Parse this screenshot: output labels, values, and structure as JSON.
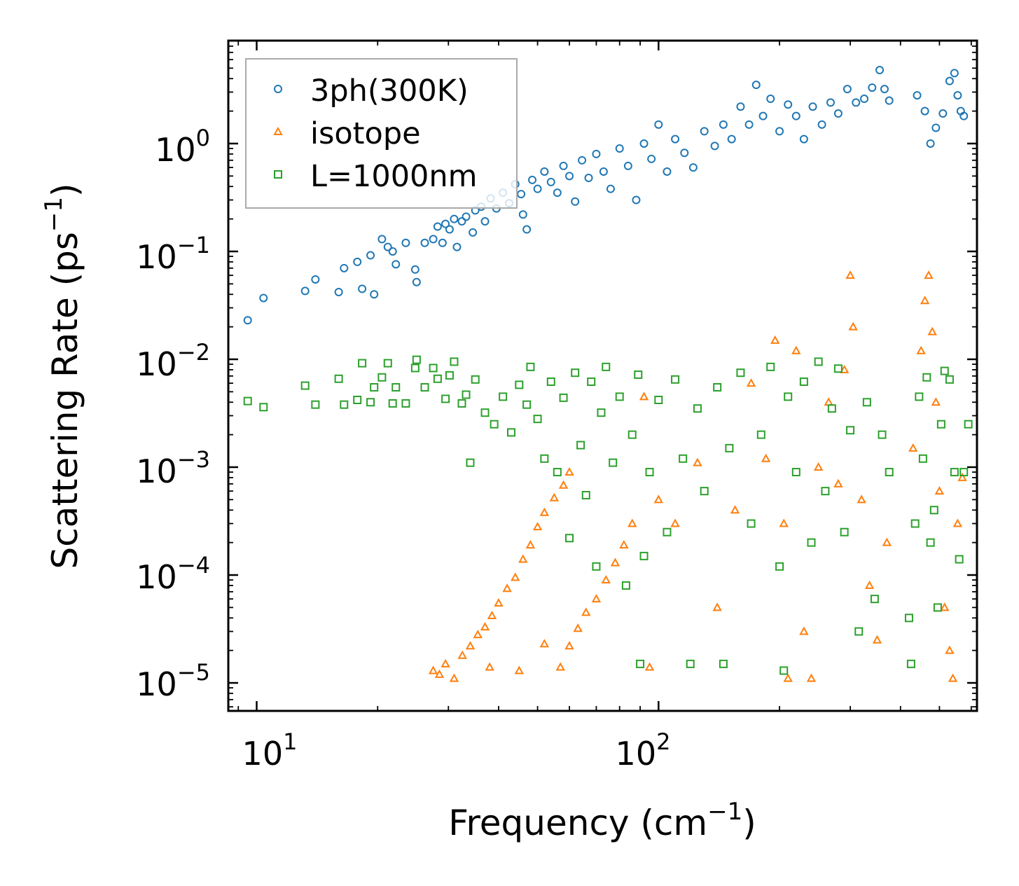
{
  "chart_data": {
    "type": "scatter",
    "xlabel": "Frequency (cm",
    "xlabel_sup": "−1",
    "xlabel_end": ")",
    "ylabel": "Scattering Rate (ps",
    "ylabel_sup": "−1",
    "ylabel_end": ")",
    "xscale": "log",
    "yscale": "log",
    "xlim": [
      8.5,
      620
    ],
    "ylim": [
      5.5e-06,
      9.0
    ],
    "x_ticks": [
      {
        "value": 10,
        "base": "10",
        "exp": "1"
      },
      {
        "value": 100,
        "base": "10",
        "exp": "2"
      }
    ],
    "y_ticks": [
      {
        "value": 1,
        "base": "10",
        "exp": "0"
      },
      {
        "value": 0.1,
        "base": "10",
        "exp": "−1"
      },
      {
        "value": 0.01,
        "base": "10",
        "exp": "−2"
      },
      {
        "value": 0.001,
        "base": "10",
        "exp": "−3"
      },
      {
        "value": 0.0001,
        "base": "10",
        "exp": "−4"
      },
      {
        "value": 1e-05,
        "base": "10",
        "exp": "−5"
      }
    ],
    "legend_position": "top-left",
    "series": [
      {
        "name": "3ph(300K)",
        "marker": "circle",
        "color": "#1f77b4",
        "points": [
          [
            9.5,
            0.023
          ],
          [
            10.4,
            0.037
          ],
          [
            13.2,
            0.043
          ],
          [
            14.0,
            0.055
          ],
          [
            16.0,
            0.042
          ],
          [
            16.5,
            0.07
          ],
          [
            17.8,
            0.08
          ],
          [
            18.3,
            0.045
          ],
          [
            19.2,
            0.092
          ],
          [
            19.6,
            0.04
          ],
          [
            20.5,
            0.13
          ],
          [
            21.2,
            0.11
          ],
          [
            21.8,
            0.1
          ],
          [
            22.2,
            0.076
          ],
          [
            23.5,
            0.12
          ],
          [
            24.8,
            0.068
          ],
          [
            25.0,
            0.052
          ],
          [
            26.2,
            0.12
          ],
          [
            27.5,
            0.13
          ],
          [
            28.2,
            0.17
          ],
          [
            29.0,
            0.12
          ],
          [
            29.5,
            0.18
          ],
          [
            30.2,
            0.16
          ],
          [
            31.0,
            0.2
          ],
          [
            31.5,
            0.11
          ],
          [
            32.4,
            0.19
          ],
          [
            33.2,
            0.21
          ],
          [
            34.5,
            0.15
          ],
          [
            35.0,
            0.24
          ],
          [
            36.2,
            0.26
          ],
          [
            37.0,
            0.19
          ],
          [
            38.2,
            0.31
          ],
          [
            39.5,
            0.25
          ],
          [
            41.0,
            0.35
          ],
          [
            42.5,
            0.28
          ],
          [
            44.0,
            0.42
          ],
          [
            45.5,
            0.34
          ],
          [
            46.0,
            0.22
          ],
          [
            47.0,
            0.16
          ],
          [
            48.5,
            0.46
          ],
          [
            50.0,
            0.38
          ],
          [
            52.0,
            0.55
          ],
          [
            54.0,
            0.44
          ],
          [
            56.0,
            0.35
          ],
          [
            58.0,
            0.62
          ],
          [
            60.0,
            0.5
          ],
          [
            62.0,
            0.29
          ],
          [
            64.5,
            0.7
          ],
          [
            67.0,
            0.48
          ],
          [
            70.0,
            0.8
          ],
          [
            73.0,
            0.55
          ],
          [
            76.0,
            0.38
          ],
          [
            80.0,
            0.9
          ],
          [
            84.0,
            0.62
          ],
          [
            88.0,
            0.3
          ],
          [
            92.0,
            1.0
          ],
          [
            96.0,
            0.72
          ],
          [
            100.0,
            1.5
          ],
          [
            105.0,
            0.55
          ],
          [
            110.0,
            1.1
          ],
          [
            116.0,
            0.82
          ],
          [
            122.0,
            0.6
          ],
          [
            130.0,
            1.3
          ],
          [
            138.0,
            0.95
          ],
          [
            145.0,
            1.5
          ],
          [
            152.0,
            1.1
          ],
          [
            160.0,
            2.2
          ],
          [
            168.0,
            1.5
          ],
          [
            175.0,
            3.5
          ],
          [
            182.0,
            1.8
          ],
          [
            190.0,
            2.6
          ],
          [
            200.0,
            1.3
          ],
          [
            210.0,
            2.3
          ],
          [
            220.0,
            1.8
          ],
          [
            230.0,
            1.1
          ],
          [
            242.0,
            2.2
          ],
          [
            255.0,
            1.5
          ],
          [
            268.0,
            2.4
          ],
          [
            280.0,
            1.9
          ],
          [
            295.0,
            3.2
          ],
          [
            310.0,
            2.4
          ],
          [
            325.0,
            2.6
          ],
          [
            340.0,
            3.3
          ],
          [
            355.0,
            4.8
          ],
          [
            365.0,
            3.2
          ],
          [
            375.0,
            2.5
          ],
          [
            440.0,
            2.8
          ],
          [
            460.0,
            2.0
          ],
          [
            475.0,
            1.0
          ],
          [
            490.0,
            1.4
          ],
          [
            510.0,
            1.9
          ],
          [
            530.0,
            3.8
          ],
          [
            545.0,
            4.5
          ],
          [
            555.0,
            2.8
          ],
          [
            565.0,
            2.0
          ],
          [
            575.0,
            1.8
          ]
        ]
      },
      {
        "name": "isotope",
        "marker": "triangle",
        "color": "#ff7f0e",
        "points": [
          [
            27.5,
            1.3e-05
          ],
          [
            28.5,
            1.2e-05
          ],
          [
            29.5,
            1.5e-05
          ],
          [
            31.0,
            1.1e-05
          ],
          [
            32.5,
            1.8e-05
          ],
          [
            34.0,
            2.2e-05
          ],
          [
            35.5,
            2.8e-05
          ],
          [
            37.0,
            3.3e-05
          ],
          [
            38.5,
            4.2e-05
          ],
          [
            40.0,
            5.5e-05
          ],
          [
            42.0,
            7.5e-05
          ],
          [
            44.0,
            9.5e-05
          ],
          [
            46.0,
            0.00014
          ],
          [
            48.0,
            0.00019
          ],
          [
            50.0,
            0.00028
          ],
          [
            52.0,
            0.00038
          ],
          [
            55.0,
            0.00052
          ],
          [
            58.0,
            0.00068
          ],
          [
            60.0,
            0.0009
          ],
          [
            38.0,
            1.4e-05
          ],
          [
            45.0,
            1.3e-05
          ],
          [
            52.0,
            2.3e-05
          ],
          [
            57.0,
            1.4e-05
          ],
          [
            60.0,
            2.2e-05
          ],
          [
            63.0,
            3.2e-05
          ],
          [
            66.0,
            4.5e-05
          ],
          [
            70.0,
            6e-05
          ],
          [
            74.0,
            9e-05
          ],
          [
            78.0,
            0.00013
          ],
          [
            82.0,
            0.00019
          ],
          [
            86.0,
            0.0003
          ],
          [
            92.0,
            0.0045
          ],
          [
            95.0,
            1.4e-05
          ],
          [
            100.0,
            0.0005
          ],
          [
            110.0,
            0.0003
          ],
          [
            125.0,
            0.0011
          ],
          [
            140.0,
            5e-05
          ],
          [
            155.0,
            0.0004
          ],
          [
            170.0,
            0.006
          ],
          [
            185.0,
            0.0012
          ],
          [
            195.0,
            0.015
          ],
          [
            205.0,
            0.0003
          ],
          [
            210.0,
            1.1e-05
          ],
          [
            220.0,
            0.012
          ],
          [
            230.0,
            3e-05
          ],
          [
            240.0,
            1.1e-05
          ],
          [
            250.0,
            0.001
          ],
          [
            265.0,
            0.004
          ],
          [
            280.0,
            0.0007
          ],
          [
            290.0,
            0.008
          ],
          [
            300.0,
            0.06
          ],
          [
            305.0,
            0.02
          ],
          [
            320.0,
            0.0005
          ],
          [
            335.0,
            8e-05
          ],
          [
            350.0,
            2.5e-05
          ],
          [
            370.0,
            0.0002
          ],
          [
            430.0,
            0.0015
          ],
          [
            450.0,
            0.012
          ],
          [
            460.0,
            0.035
          ],
          [
            470.0,
            0.06
          ],
          [
            480.0,
            0.018
          ],
          [
            490.0,
            0.004
          ],
          [
            500.0,
            0.0006
          ],
          [
            515.0,
            5e-05
          ],
          [
            530.0,
            2e-05
          ],
          [
            540.0,
            1.1e-05
          ],
          [
            555.0,
            0.0003
          ],
          [
            570.0,
            0.0008
          ]
        ]
      },
      {
        "name": "L=1000nm",
        "marker": "square",
        "color": "#2ca02c",
        "points": [
          [
            9.5,
            0.0041
          ],
          [
            10.4,
            0.0036
          ],
          [
            13.2,
            0.0057
          ],
          [
            14.0,
            0.0038
          ],
          [
            16.0,
            0.0066
          ],
          [
            16.5,
            0.0038
          ],
          [
            17.8,
            0.0042
          ],
          [
            18.3,
            0.0092
          ],
          [
            19.2,
            0.004
          ],
          [
            19.6,
            0.0055
          ],
          [
            20.5,
            0.0068
          ],
          [
            21.2,
            0.0092
          ],
          [
            21.8,
            0.0039
          ],
          [
            22.2,
            0.0055
          ],
          [
            23.5,
            0.0039
          ],
          [
            24.8,
            0.0083
          ],
          [
            25.0,
            0.0099
          ],
          [
            26.2,
            0.0055
          ],
          [
            27.5,
            0.0083
          ],
          [
            28.2,
            0.0066
          ],
          [
            29.5,
            0.0043
          ],
          [
            30.2,
            0.0071
          ],
          [
            31.0,
            0.0095
          ],
          [
            32.4,
            0.0039
          ],
          [
            33.2,
            0.0047
          ],
          [
            34.0,
            0.0011
          ],
          [
            35.0,
            0.0065
          ],
          [
            37.0,
            0.0032
          ],
          [
            39.0,
            0.0025
          ],
          [
            41.0,
            0.0045
          ],
          [
            43.0,
            0.0021
          ],
          [
            45.0,
            0.0058
          ],
          [
            47.0,
            0.0038
          ],
          [
            48.0,
            0.0085
          ],
          [
            50.0,
            0.0028
          ],
          [
            52.0,
            0.0012
          ],
          [
            54.0,
            0.0062
          ],
          [
            56.0,
            0.0009
          ],
          [
            58.0,
            0.0044
          ],
          [
            60.0,
            0.00022
          ],
          [
            62.0,
            0.0075
          ],
          [
            64.0,
            0.0016
          ],
          [
            66.0,
            0.00055
          ],
          [
            68.0,
            0.0062
          ],
          [
            70.0,
            0.00012
          ],
          [
            72.0,
            0.0032
          ],
          [
            74.0,
            0.0085
          ],
          [
            77.0,
            0.0011
          ],
          [
            80.0,
            0.0045
          ],
          [
            83.0,
            8e-05
          ],
          [
            86.0,
            0.002
          ],
          [
            89.0,
            0.0072
          ],
          [
            90.0,
            1.5e-05
          ],
          [
            92.0,
            0.00015
          ],
          [
            95.0,
            0.0009
          ],
          [
            100.0,
            0.0042
          ],
          [
            105.0,
            0.00025
          ],
          [
            110.0,
            0.0065
          ],
          [
            115.0,
            0.0012
          ],
          [
            120.0,
            1.5e-05
          ],
          [
            125.0,
            0.0035
          ],
          [
            130.0,
            0.0006
          ],
          [
            140.0,
            0.0055
          ],
          [
            145.0,
            1.5e-05
          ],
          [
            150.0,
            0.0015
          ],
          [
            160.0,
            0.0075
          ],
          [
            170.0,
            0.0003
          ],
          [
            180.0,
            0.002
          ],
          [
            190.0,
            0.0085
          ],
          [
            200.0,
            0.00012
          ],
          [
            205.0,
            1.3e-05
          ],
          [
            210.0,
            0.0045
          ],
          [
            220.0,
            0.0009
          ],
          [
            230.0,
            0.0062
          ],
          [
            240.0,
            0.0002
          ],
          [
            250.0,
            0.0095
          ],
          [
            260.0,
            0.0006
          ],
          [
            270.0,
            0.0035
          ],
          [
            280.0,
            0.0082
          ],
          [
            290.0,
            0.00025
          ],
          [
            300.0,
            0.0022
          ],
          [
            315.0,
            3e-05
          ],
          [
            330.0,
            0.004
          ],
          [
            345.0,
            6e-05
          ],
          [
            360.0,
            0.002
          ],
          [
            375.0,
            0.0009
          ],
          [
            420.0,
            4e-05
          ],
          [
            425.0,
            1.5e-05
          ],
          [
            435.0,
            0.0003
          ],
          [
            445.0,
            0.0045
          ],
          [
            455.0,
            0.0012
          ],
          [
            465.0,
            0.0068
          ],
          [
            475.0,
            0.0002
          ],
          [
            485.0,
            0.0004
          ],
          [
            495.0,
            5e-05
          ],
          [
            505.0,
            0.0025
          ],
          [
            515.0,
            0.0078
          ],
          [
            530.0,
            0.0065
          ],
          [
            545.0,
            0.0009
          ],
          [
            560.0,
            0.00014
          ],
          [
            575.0,
            0.0009
          ],
          [
            590.0,
            0.0025
          ]
        ]
      }
    ]
  }
}
